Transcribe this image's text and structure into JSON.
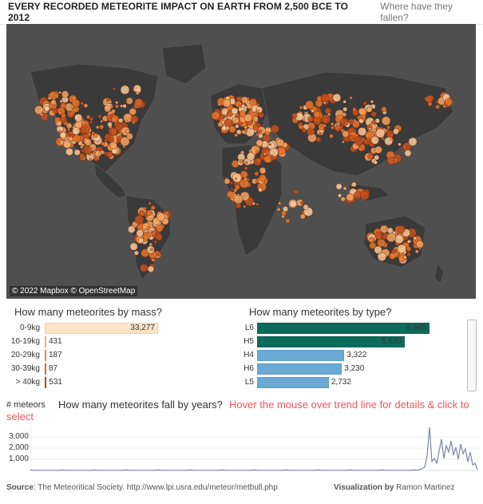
{
  "header": {
    "title": "EVERY RECORDED METEORITE IMPACT ON EARTH FROM 2,500 BCE TO 2012",
    "subtitle": "Where have they fallen?"
  },
  "map": {
    "credit": "© 2022 Mapbox © OpenStreetMap",
    "background_color": "#4f4f4f",
    "land_color": "#3a3a3a",
    "dot_colors": [
      "#f4a460",
      "#e8742a",
      "#c4501d",
      "#f6c99a"
    ]
  },
  "mass": {
    "title": "How many meteorites by mass?",
    "items": [
      {
        "label": "0-9kg",
        "value": 33277,
        "value_text": "33,277",
        "color": "#fce4c8"
      },
      {
        "label": "10-19kg",
        "value": 431,
        "value_text": "431",
        "color": "#f9c393"
      },
      {
        "label": "20-29kg",
        "value": 187,
        "value_text": "187",
        "color": "#f39a58"
      },
      {
        "label": "30-39kg",
        "value": 87,
        "value_text": "87",
        "color": "#e8742a"
      },
      {
        "label": "> 40kg",
        "value": 531,
        "value_text": "531",
        "color": "#b5532a"
      }
    ]
  },
  "type": {
    "title": "How many meteorites by type?",
    "items": [
      {
        "label": "L6",
        "value": 6565,
        "value_text": "6,565",
        "color": "#0d6b5b"
      },
      {
        "label": "H5",
        "value": 5620,
        "value_text": "5,620",
        "color": "#0d6b5b"
      },
      {
        "label": "H4",
        "value": 3322,
        "value_text": "3,322",
        "color": "#6aaad4"
      },
      {
        "label": "H6",
        "value": 3230,
        "value_text": "3,230",
        "color": "#6aaad4"
      },
      {
        "label": "L5",
        "value": 2732,
        "value_text": "2,732",
        "color": "#6aaad4"
      }
    ]
  },
  "trend": {
    "axis_title": "# meteors",
    "title": "How many meteorites fall by years?",
    "hint_line1": "Hover the mouse over trend line for details & click to",
    "hint_line2": "select",
    "ticks": [
      "3,000",
      "2,000",
      "1,000"
    ],
    "line_color": "#7b87a8"
  },
  "footer": {
    "source_label": "Source",
    "source_text": ": The Meteoritical Society. http://www.lpi.usra.edu/meteor/metbull.php",
    "viz_label": "Visualization by",
    "viz_author": " Ramon Martinez"
  }
}
